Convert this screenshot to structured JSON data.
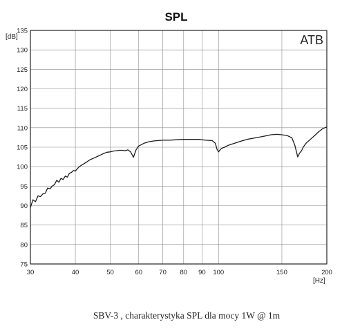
{
  "chart_data": {
    "type": "line",
    "title": "SPL",
    "brand": "ATB",
    "caption": "SBV-3 , charakterystyka SPL dla mocy  1W @ 1m",
    "xunit": "[Hz]",
    "yunit": "[dB]",
    "xscale": "log",
    "xlim": [
      30,
      200
    ],
    "ylim": [
      75,
      135
    ],
    "xticks": [
      30,
      40,
      50,
      60,
      70,
      80,
      90,
      100,
      150,
      200
    ],
    "yticks": [
      75,
      80,
      85,
      90,
      95,
      100,
      105,
      110,
      115,
      120,
      125,
      130,
      135
    ],
    "grid": true,
    "line_color": "#1a1a1a",
    "series": [
      {
        "x": [
          30,
          30.5,
          31,
          31.5,
          32,
          32.5,
          33,
          33.5,
          34,
          34.5,
          35,
          35.5,
          36,
          36.5,
          37,
          37.5,
          38,
          38.5,
          39,
          39.5,
          40,
          41,
          42,
          43,
          44,
          45,
          46,
          47,
          48,
          49,
          50,
          51,
          52,
          53,
          54,
          55,
          56,
          57,
          58,
          59,
          60,
          62,
          64,
          66,
          68,
          70,
          73,
          76,
          80,
          84,
          88,
          92,
          96,
          98,
          99,
          100,
          101,
          102,
          104,
          106,
          108,
          110,
          115,
          120,
          125,
          130,
          135,
          140,
          145,
          150,
          155,
          160,
          163,
          166,
          168,
          170,
          172,
          175,
          180,
          185,
          190,
          195,
          200
        ],
        "y": [
          89.5,
          91.5,
          91.0,
          92.5,
          92.3,
          93.0,
          93.2,
          94.5,
          94.3,
          95.0,
          95.4,
          96.5,
          96.0,
          97.0,
          96.7,
          97.6,
          97.3,
          98.3,
          98.5,
          99.0,
          98.9,
          100.0,
          100.6,
          101.2,
          101.8,
          102.2,
          102.6,
          103.0,
          103.4,
          103.7,
          103.8,
          104.0,
          104.1,
          104.2,
          104.2,
          104.1,
          104.3,
          103.8,
          102.4,
          104.3,
          105.3,
          106.0,
          106.4,
          106.6,
          106.7,
          106.8,
          106.8,
          106.9,
          107.0,
          107.0,
          107.0,
          106.8,
          106.7,
          106.0,
          104.5,
          103.8,
          104.3,
          104.7,
          105.0,
          105.4,
          105.7,
          105.9,
          106.5,
          107.0,
          107.3,
          107.6,
          107.9,
          108.2,
          108.3,
          108.2,
          108.0,
          107.4,
          105.5,
          102.5,
          103.5,
          104.0,
          105.0,
          106.0,
          107.0,
          108.0,
          109.0,
          109.8,
          110.2
        ]
      }
    ]
  }
}
